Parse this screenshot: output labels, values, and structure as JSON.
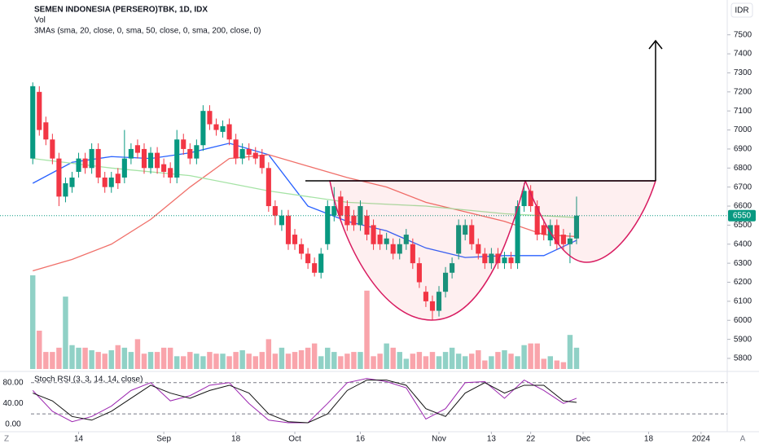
{
  "chart_data": {
    "type": "candlestick",
    "title": "SEMEN INDONESIA (PERSERO)TBK, 1D, IDX",
    "currency": "IDR",
    "last_price": 6550,
    "up_color": "#089981",
    "down_color": "#f23645",
    "xlim": [
      -5,
      106
    ],
    "xticks": [
      {
        "value": 7,
        "label": "14"
      },
      {
        "value": 20,
        "label": "Sep"
      },
      {
        "value": 31,
        "label": "18"
      },
      {
        "value": 40,
        "label": "Oct"
      },
      {
        "value": 50,
        "label": "16"
      },
      {
        "value": 62,
        "label": "Nov"
      },
      {
        "value": 70,
        "label": "13"
      },
      {
        "value": 76,
        "label": "22"
      },
      {
        "value": 84,
        "label": "Dec"
      },
      {
        "value": 94,
        "label": "18"
      },
      {
        "value": 102,
        "label": "2024"
      }
    ],
    "ylim": [
      5740,
      7640
    ],
    "yticks": [
      5800,
      5900,
      6000,
      6100,
      6200,
      6300,
      6400,
      6500,
      6600,
      6700,
      6800,
      6900,
      7000,
      7100,
      7200,
      7300,
      7400,
      7500
    ],
    "open": [
      6850,
      7200,
      7040,
      6950,
      6850,
      6650,
      6700,
      6780,
      6850,
      6800,
      6900,
      6750,
      6700,
      6770,
      6750,
      6850,
      6920,
      6900,
      6800,
      6880,
      6820,
      6800,
      6750,
      6950,
      6900,
      6850,
      6920,
      7100,
      7030,
      6990,
      7030,
      6950,
      6850,
      6900,
      6880,
      6870,
      6800,
      6600,
      6500,
      6550,
      6450,
      6400,
      6350,
      6300,
      6250,
      6400,
      6550,
      6650,
      6600,
      6550,
      6500,
      6550,
      6500,
      6450,
      6400,
      6400,
      6350,
      6400,
      6400,
      6300,
      6150,
      6100,
      6050,
      6150,
      6250,
      6350,
      6450,
      6500,
      6400,
      6350,
      6300,
      6350,
      6300,
      6330,
      6300,
      6600,
      6680,
      6600,
      6500,
      6420,
      6500,
      6450,
      6400,
      6430
    ],
    "high": [
      7250,
      7230,
      7070,
      6980,
      6880,
      6750,
      6780,
      6880,
      6880,
      6930,
      6930,
      6780,
      6780,
      6800,
      7000,
      6930,
      6950,
      6930,
      6910,
      6910,
      6850,
      6830,
      7000,
      6980,
      6930,
      6950,
      7130,
      7130,
      7060,
      7050,
      7060,
      6980,
      6930,
      6930,
      6910,
      6900,
      6830,
      6630,
      6580,
      6580,
      6480,
      6430,
      6380,
      6330,
      6380,
      6630,
      6700,
      6680,
      6630,
      6580,
      6630,
      6580,
      6530,
      6480,
      6460,
      6430,
      6430,
      6480,
      6430,
      6330,
      6180,
      6130,
      6180,
      6280,
      6330,
      6530,
      6530,
      6530,
      6430,
      6380,
      6380,
      6380,
      6360,
      6360,
      6630,
      6720,
      6710,
      6630,
      6530,
      6530,
      6530,
      6480,
      6460,
      6650
    ],
    "low": [
      6820,
      6970,
      6920,
      6820,
      6600,
      6620,
      6670,
      6750,
      6770,
      6770,
      6720,
      6670,
      6670,
      6690,
      6720,
      6820,
      6850,
      6770,
      6770,
      6770,
      6750,
      6720,
      6720,
      6870,
      6820,
      6820,
      6890,
      7000,
      6970,
      6960,
      6920,
      6820,
      6820,
      6840,
      6820,
      6770,
      6570,
      6500,
      6470,
      6370,
      6370,
      6320,
      6270,
      6230,
      6220,
      6370,
      6520,
      6520,
      6470,
      6470,
      6470,
      6420,
      6370,
      6370,
      6370,
      6320,
      6320,
      6370,
      6270,
      6170,
      6070,
      6000,
      6020,
      6120,
      6220,
      6320,
      6420,
      6370,
      6320,
      6270,
      6270,
      6270,
      6270,
      6270,
      6270,
      6570,
      6570,
      6420,
      6420,
      6390,
      6370,
      6370,
      6300,
      6400
    ],
    "close": [
      7230,
      7000,
      6950,
      6850,
      6650,
      6720,
      6750,
      6850,
      6800,
      6900,
      6750,
      6700,
      6750,
      6720,
      6850,
      6900,
      6880,
      6800,
      6880,
      6800,
      6780,
      6750,
      6950,
      6900,
      6850,
      6920,
      7100,
      7030,
      7000,
      7020,
      6950,
      6850,
      6900,
      6870,
      6850,
      6800,
      6600,
      6550,
      6550,
      6400,
      6400,
      6350,
      6300,
      6250,
      6350,
      6600,
      6600,
      6550,
      6500,
      6500,
      6600,
      6450,
      6400,
      6400,
      6430,
      6350,
      6400,
      6450,
      6300,
      6200,
      6100,
      6050,
      6150,
      6250,
      6300,
      6500,
      6500,
      6400,
      6350,
      6300,
      6350,
      6300,
      6330,
      6300,
      6600,
      6680,
      6600,
      6450,
      6450,
      6500,
      6400,
      6400,
      6430,
      6550
    ],
    "volume": {
      "name": "Vol",
      "values": [
        110,
        45,
        20,
        20,
        25,
        85,
        28,
        25,
        25,
        22,
        20,
        18,
        22,
        28,
        25,
        20,
        35,
        18,
        20,
        20,
        25,
        25,
        15,
        15,
        20,
        18,
        15,
        20,
        18,
        18,
        15,
        20,
        22,
        18,
        15,
        20,
        35,
        18,
        25,
        18,
        20,
        22,
        25,
        30,
        15,
        25,
        20,
        15,
        18,
        20,
        20,
        92,
        15,
        18,
        30,
        25,
        20,
        12,
        18,
        20,
        15,
        20,
        15,
        20,
        25,
        18,
        15,
        18,
        22,
        10,
        15,
        20,
        22,
        18,
        15,
        28,
        30,
        30,
        12,
        15,
        10,
        8,
        40,
        25
      ]
    },
    "moving_averages": {
      "name": "3MAs (sma, 20, close, 0, sma, 50, close, 0, sma, 200, close, 0)",
      "series": [
        {
          "color": "#2962ff",
          "x": [
            0,
            6,
            12,
            18,
            24,
            30,
            36,
            42,
            48,
            54,
            60,
            66,
            72,
            78,
            83
          ],
          "values": [
            6720,
            6830,
            6860,
            6850,
            6880,
            6930,
            6870,
            6600,
            6520,
            6470,
            6380,
            6330,
            6340,
            6340,
            6420
          ]
        },
        {
          "color": "#f0706a",
          "x": [
            0,
            6,
            12,
            18,
            24,
            30,
            36,
            42,
            48,
            54,
            60,
            66,
            72,
            78,
            83
          ],
          "values": [
            6260,
            6320,
            6400,
            6530,
            6700,
            6850,
            6870,
            6810,
            6750,
            6700,
            6620,
            6570,
            6520,
            6450,
            6440
          ]
        },
        {
          "color": "#a5e3a5",
          "x": [
            0,
            12,
            24,
            36,
            48,
            60,
            72,
            83
          ],
          "values": [
            6850,
            6800,
            6760,
            6680,
            6620,
            6600,
            6560,
            6540
          ]
        }
      ]
    },
    "stoch_rsi": {
      "name": "Stoch RSI (3, 3, 14, 14, close)",
      "ylim": [
        -8,
        100
      ],
      "yticks": [
        {
          "value": 80,
          "label": "80.00"
        },
        {
          "value": 40,
          "label": "40.00"
        },
        {
          "value": 0,
          "label": "0.00"
        }
      ],
      "bands": [
        80,
        20
      ],
      "x": [
        0,
        3,
        6,
        9,
        12,
        15,
        18,
        21,
        24,
        27,
        30,
        33,
        36,
        39,
        42,
        45,
        48,
        51,
        54,
        57,
        60,
        63,
        66,
        69,
        72,
        75,
        78,
        81,
        83
      ],
      "series": [
        {
          "color": "#9c27b0",
          "values": [
            65,
            25,
            5,
            15,
            35,
            65,
            80,
            45,
            55,
            75,
            80,
            40,
            8,
            3,
            3,
            40,
            80,
            88,
            82,
            70,
            10,
            30,
            80,
            82,
            50,
            85,
            65,
            40,
            50
          ]
        },
        {
          "color": "#111111",
          "values": [
            60,
            45,
            15,
            8,
            25,
            50,
            75,
            60,
            50,
            65,
            75,
            60,
            20,
            5,
            3,
            20,
            65,
            85,
            85,
            75,
            30,
            15,
            60,
            80,
            60,
            75,
            75,
            45,
            42
          ]
        }
      ]
    },
    "buttons": [
      "Z",
      "A"
    ]
  }
}
